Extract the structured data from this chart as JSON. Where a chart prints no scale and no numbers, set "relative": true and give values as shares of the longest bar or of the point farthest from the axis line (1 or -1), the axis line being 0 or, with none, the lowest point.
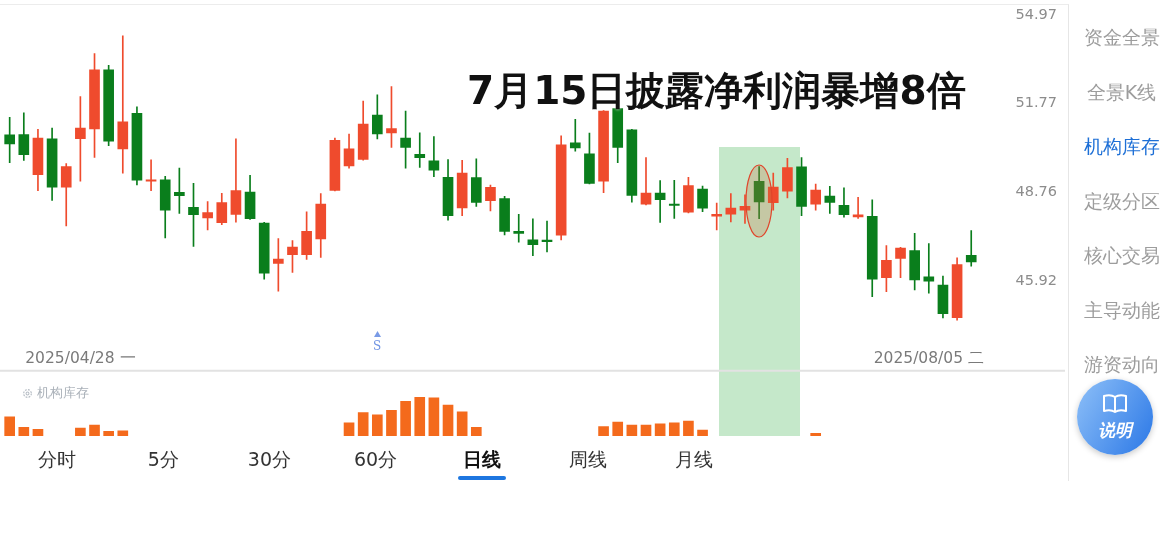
{
  "chart_data": [
    {
      "type": "candlestick",
      "title": "7月15日披露净利润暴增8倍",
      "categories": [
        null,
        null,
        null,
        null,
        null,
        "2025/04/28 一",
        null,
        null,
        null,
        null,
        null,
        null,
        null,
        null,
        null,
        null,
        null,
        null,
        null,
        null,
        null,
        null,
        null,
        null,
        null,
        null,
        null,
        null,
        null,
        null,
        null,
        null,
        null,
        null,
        null,
        null,
        null,
        null,
        null,
        null,
        null,
        null,
        null,
        null,
        null,
        null,
        null,
        null,
        null,
        null,
        null,
        null,
        null,
        null,
        null,
        null,
        null,
        null,
        null,
        null,
        null,
        null,
        null,
        null,
        null,
        "2025/08/05 二",
        null,
        null,
        null
      ],
      "ohlc": [
        [
          50.69,
          51.29,
          49.74,
          50.38
        ],
        [
          50.7,
          51.45,
          49.82,
          50.01
        ],
        [
          49.34,
          50.88,
          48.81,
          50.58
        ],
        [
          50.55,
          50.92,
          48.49,
          48.92
        ],
        [
          48.92,
          49.71,
          47.66,
          49.61
        ],
        [
          50.56,
          52.02,
          49.12,
          50.92
        ],
        [
          50.89,
          53.55,
          49.92,
          52.97
        ],
        [
          52.97,
          53.13,
          50.32,
          50.47
        ],
        [
          50.21,
          54.2,
          49.39,
          51.14
        ],
        [
          51.43,
          51.66,
          49.0,
          49.16
        ],
        [
          49.12,
          49.84,
          48.81,
          49.17
        ],
        [
          49.17,
          49.28,
          47.27,
          48.17
        ],
        [
          48.75,
          49.56,
          48.06,
          48.64
        ],
        [
          48.26,
          49.05,
          47.0,
          48.02
        ],
        [
          47.92,
          48.45,
          47.53,
          48.09
        ],
        [
          47.76,
          48.72,
          47.7,
          48.42
        ],
        [
          48.03,
          50.55,
          47.78,
          48.81
        ],
        [
          48.76,
          49.32,
          47.87,
          47.89
        ],
        [
          47.75,
          47.77,
          45.97,
          46.16
        ],
        [
          46.46,
          47.25,
          45.6,
          46.6
        ],
        [
          46.74,
          47.19,
          46.18,
          46.98
        ],
        [
          46.74,
          48.11,
          46.59,
          47.48
        ],
        [
          47.24,
          48.71,
          46.65,
          48.37
        ],
        [
          48.82,
          50.58,
          48.8,
          50.5
        ],
        [
          49.63,
          50.71,
          49.56,
          50.21
        ],
        [
          49.85,
          51.86,
          49.83,
          51.06
        ],
        [
          51.37,
          52.08,
          50.55,
          50.72
        ],
        [
          50.75,
          52.37,
          50.26,
          50.9
        ],
        [
          50.58,
          51.51,
          49.56,
          50.26
        ],
        [
          50.02,
          50.76,
          49.58,
          49.91
        ],
        [
          49.8,
          50.63,
          49.27,
          49.49
        ],
        [
          49.25,
          49.85,
          47.84,
          47.99
        ],
        [
          48.24,
          49.82,
          47.99,
          49.39
        ],
        [
          49.24,
          49.87,
          48.29,
          48.42
        ],
        [
          48.48,
          48.99,
          48.14,
          48.92
        ],
        [
          48.55,
          48.62,
          47.37,
          47.48
        ],
        [
          47.48,
          48.03,
          47.14,
          47.42
        ],
        [
          47.21,
          47.89,
          46.71,
          47.06
        ],
        [
          47.2,
          47.81,
          46.83,
          47.15
        ],
        [
          47.36,
          50.65,
          47.21,
          50.35
        ],
        [
          50.41,
          51.22,
          50.13,
          50.24
        ],
        [
          50.04,
          50.75,
          49.03,
          49.05
        ],
        [
          49.12,
          51.53,
          48.74,
          51.51
        ],
        [
          51.6,
          51.62,
          49.74,
          50.26
        ],
        [
          50.86,
          50.88,
          48.43,
          48.65
        ],
        [
          48.36,
          49.91,
          48.34,
          48.73
        ],
        [
          48.73,
          49.14,
          47.77,
          48.51
        ],
        [
          48.36,
          49.15,
          47.9,
          48.32
        ],
        [
          48.1,
          49.25,
          48.08,
          48.98
        ],
        [
          48.86,
          48.96,
          48.12,
          48.23
        ],
        [
          47.97,
          48.4,
          47.53,
          48.03
        ],
        [
          48.04,
          48.71,
          47.79,
          48.24
        ],
        [
          48.17,
          48.67,
          47.74,
          48.29
        ],
        [
          49.12,
          49.61,
          47.89,
          48.44
        ],
        [
          48.41,
          49.39,
          48.17,
          48.93
        ],
        [
          48.79,
          49.89,
          48.57,
          49.58
        ],
        [
          49.6,
          49.91,
          47.99,
          48.29
        ],
        [
          48.36,
          49.03,
          48.17,
          48.83
        ],
        [
          48.63,
          48.95,
          48.06,
          48.42
        ],
        [
          48.33,
          48.9,
          47.94,
          48.02
        ],
        [
          47.95,
          48.59,
          47.9,
          48.02
        ],
        [
          47.97,
          48.51,
          45.43,
          45.97
        ],
        [
          46.02,
          47.03,
          45.58,
          46.56
        ],
        [
          46.62,
          46.97,
          46.02,
          46.95
        ],
        [
          46.87,
          47.42,
          45.64,
          45.95
        ],
        [
          46.04,
          47.09,
          45.54,
          45.91
        ],
        [
          45.79,
          46.07,
          44.78,
          44.91
        ],
        [
          44.79,
          46.64,
          44.71,
          46.43
        ],
        [
          46.72,
          47.51,
          46.38,
          46.51
        ]
      ],
      "colors": [
        "#0a7e1c",
        "#0a7e1c",
        "#ef4b2d",
        "#0a7e1c",
        "#ef4b2d",
        "#ef4b2d",
        "#ef4b2d",
        "#0a7e1c",
        "#ef4b2d",
        "#0a7e1c",
        "#ef4b2d",
        "#0a7e1c",
        "#0a7e1c",
        "#0a7e1c",
        "#ef4b2d",
        "#ef4b2d",
        "#ef4b2d",
        "#0a7e1c",
        "#0a7e1c",
        "#ef4b2d",
        "#ef4b2d",
        "#ef4b2d",
        "#ef4b2d",
        "#ef4b2d",
        "#ef4b2d",
        "#ef4b2d",
        "#0a7e1c",
        "#ef4b2d",
        "#0a7e1c",
        "#0a7e1c",
        "#0a7e1c",
        "#0a7e1c",
        "#ef4b2d",
        "#0a7e1c",
        "#ef4b2d",
        "#0a7e1c",
        "#0a7e1c",
        "#0a7e1c",
        "#0a7e1c",
        "#ef4b2d",
        "#0a7e1c",
        "#0a7e1c",
        "#ef4b2d",
        "#0a7e1c",
        "#0a7e1c",
        "#ef4b2d",
        "#0a7e1c",
        "#0a7e1c",
        "#ef4b2d",
        "#0a7e1c",
        "#ef4b2d",
        "#ef4b2d",
        "#ef4b2d",
        "#0a7e1c",
        "#ef4b2d",
        "#ef4b2d",
        "#0a7e1c",
        "#ef4b2d",
        "#0a7e1c",
        "#0a7e1c",
        "#ef4b2d",
        "#0a7e1c",
        "#ef4b2d",
        "#ef4b2d",
        "#0a7e1c",
        "#0a7e1c",
        "#0a7e1c",
        "#ef4b2d",
        "#0a7e1c"
      ],
      "log": true,
      "ylim": [
        43.25,
        54.97
      ],
      "yticks": [
        45.92,
        48.76,
        51.77,
        54.97
      ],
      "annotations": [
        "S"
      ]
    },
    {
      "type": "bar",
      "title": "机构库存",
      "relative": true,
      "color": "#f46a1c",
      "categories": [
        null,
        null,
        null,
        null,
        null,
        null,
        null,
        null,
        null,
        null,
        null,
        null,
        null,
        null,
        null,
        null,
        null,
        null,
        null,
        null,
        null,
        null,
        null,
        null,
        null,
        null,
        null,
        null,
        null,
        null,
        null,
        null,
        null,
        null,
        null,
        null,
        null,
        null,
        null,
        null,
        null,
        null,
        null,
        null,
        null,
        null,
        null,
        null,
        null,
        null,
        null,
        null,
        null,
        null,
        null,
        null,
        null,
        null,
        null,
        null,
        null,
        null,
        null,
        null,
        null,
        null,
        null,
        null,
        null
      ],
      "values": [
        0.49,
        0.22,
        0.17,
        null,
        null,
        0.2,
        0.28,
        0.12,
        0.13,
        null,
        null,
        null,
        null,
        null,
        null,
        null,
        null,
        null,
        null,
        null,
        null,
        null,
        null,
        null,
        0.34,
        0.6,
        0.54,
        0.66,
        0.89,
        1,
        0.98,
        0.79,
        0.62,
        0.22,
        null,
        null,
        null,
        null,
        null,
        null,
        null,
        null,
        0.24,
        0.36,
        0.28,
        0.28,
        0.31,
        0.34,
        0.38,
        0.15,
        null,
        null,
        null,
        null,
        null,
        null,
        null,
        0.07,
        null,
        null,
        null,
        null,
        null,
        null,
        null,
        null,
        null,
        null,
        null
      ]
    },
    {
      "type": "other",
      "annotations": [
        "资金全景",
        "全景K线",
        "机构库存",
        "定级分区",
        "核心交易",
        "主导动能",
        "游资动向"
      ]
    },
    {
      "type": "other",
      "annotations": [
        "分时",
        "5分",
        "30分",
        "60分",
        "日线",
        "周线",
        "月线"
      ]
    },
    {
      "type": "other",
      "annotations": [
        "说明"
      ]
    }
  ]
}
